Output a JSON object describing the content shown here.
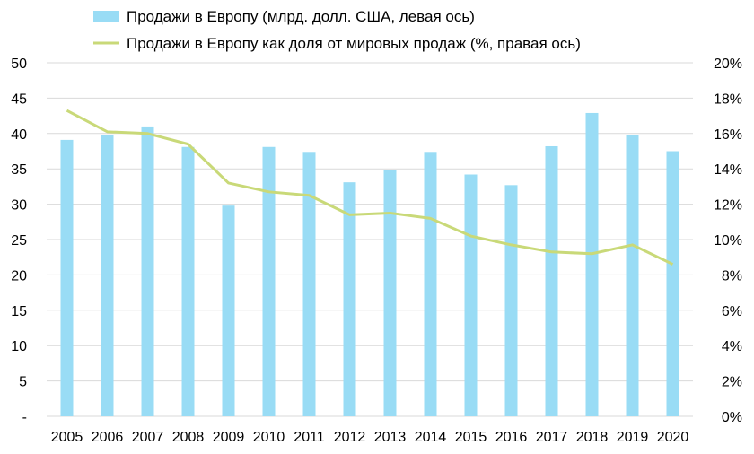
{
  "chart_data": {
    "type": "bar",
    "categories": [
      "2005",
      "2006",
      "2007",
      "2008",
      "2009",
      "2010",
      "2011",
      "2012",
      "2013",
      "2014",
      "2015",
      "2016",
      "2017",
      "2018",
      "2019",
      "2020"
    ],
    "series": [
      {
        "name": "Продажи в Европу (млрд. долл. США, левая ось)",
        "type": "bar",
        "axis": "left",
        "color": "#99dcf5",
        "values": [
          39.1,
          39.8,
          41.0,
          38.1,
          29.8,
          38.1,
          37.4,
          33.1,
          34.9,
          37.4,
          34.2,
          32.7,
          38.2,
          42.9,
          39.8,
          37.5
        ]
      },
      {
        "name": "Продажи в Европу как доля от мировых продаж (%, правая ось)",
        "type": "line",
        "axis": "right",
        "color": "#c9d978",
        "values": [
          17.3,
          16.1,
          16.0,
          15.4,
          13.2,
          12.7,
          12.5,
          11.4,
          11.5,
          11.2,
          10.2,
          9.7,
          9.3,
          9.2,
          9.7,
          8.6
        ]
      }
    ],
    "left_axis": {
      "ylim": [
        0,
        50
      ],
      "ticks": [
        "-",
        "5",
        "10",
        "15",
        "20",
        "25",
        "30",
        "35",
        "40",
        "45",
        "50"
      ]
    },
    "right_axis": {
      "ylim": [
        0,
        20
      ],
      "ticks": [
        "0%",
        "2%",
        "4%",
        "6%",
        "8%",
        "10%",
        "12%",
        "14%",
        "16%",
        "18%",
        "20%"
      ]
    },
    "grid": true,
    "legend_position": "top-center"
  }
}
